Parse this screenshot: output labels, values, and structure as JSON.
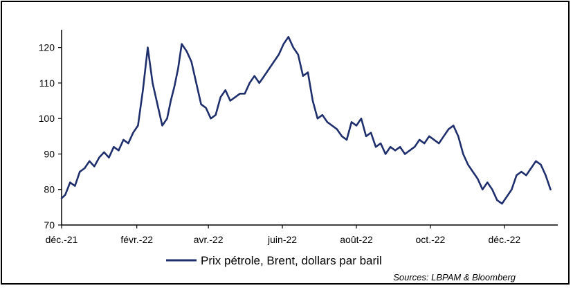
{
  "chart_data": {
    "type": "line",
    "title": "",
    "xlabel": "",
    "ylabel": "",
    "ylim": [
      70,
      125
    ],
    "yticks": [
      70,
      80,
      90,
      100,
      110,
      120
    ],
    "x_tick_labels": [
      "déc.-21",
      "févr.-22",
      "avr.-22",
      "juin-22",
      "août-22",
      "oct.-22",
      "déc.-22"
    ],
    "x_tick_dates": [
      "2021-12-01",
      "2022-02-01",
      "2022-04-01",
      "2022-06-01",
      "2022-08-01",
      "2022-10-01",
      "2022-12-01"
    ],
    "x_range": [
      "2021-12-01",
      "2023-01-14"
    ],
    "line_color": "#1f2f6e",
    "grid": false,
    "legend_position": "bottom-center",
    "series": [
      {
        "name": "Prix pétrole, Brent, dollars par baril",
        "x": [
          "2021-12-01",
          "2021-12-04",
          "2021-12-08",
          "2021-12-12",
          "2021-12-16",
          "2021-12-20",
          "2021-12-24",
          "2021-12-28",
          "2022-01-01",
          "2022-01-05",
          "2022-01-09",
          "2022-01-13",
          "2022-01-17",
          "2022-01-21",
          "2022-01-25",
          "2022-01-29",
          "2022-02-02",
          "2022-02-06",
          "2022-02-10",
          "2022-02-14",
          "2022-02-18",
          "2022-02-22",
          "2022-02-26",
          "2022-03-01",
          "2022-03-04",
          "2022-03-07",
          "2022-03-10",
          "2022-03-14",
          "2022-03-18",
          "2022-03-22",
          "2022-03-26",
          "2022-03-30",
          "2022-04-03",
          "2022-04-07",
          "2022-04-11",
          "2022-04-15",
          "2022-04-19",
          "2022-04-23",
          "2022-04-27",
          "2022-05-01",
          "2022-05-05",
          "2022-05-09",
          "2022-05-13",
          "2022-05-17",
          "2022-05-21",
          "2022-05-25",
          "2022-05-29",
          "2022-06-02",
          "2022-06-06",
          "2022-06-10",
          "2022-06-14",
          "2022-06-18",
          "2022-06-22",
          "2022-06-26",
          "2022-06-30",
          "2022-07-04",
          "2022-07-08",
          "2022-07-12",
          "2022-07-16",
          "2022-07-20",
          "2022-07-24",
          "2022-07-28",
          "2022-08-01",
          "2022-08-05",
          "2022-08-09",
          "2022-08-13",
          "2022-08-17",
          "2022-08-21",
          "2022-08-25",
          "2022-08-29",
          "2022-09-02",
          "2022-09-06",
          "2022-09-10",
          "2022-09-14",
          "2022-09-18",
          "2022-09-22",
          "2022-09-26",
          "2022-09-30",
          "2022-10-04",
          "2022-10-08",
          "2022-10-12",
          "2022-10-16",
          "2022-10-20",
          "2022-10-24",
          "2022-10-28",
          "2022-11-01",
          "2022-11-05",
          "2022-11-09",
          "2022-11-13",
          "2022-11-17",
          "2022-11-21",
          "2022-11-25",
          "2022-11-29",
          "2022-12-03",
          "2022-12-07",
          "2022-12-11",
          "2022-12-15",
          "2022-12-19",
          "2022-12-23",
          "2022-12-27",
          "2022-12-31",
          "2023-01-04",
          "2023-01-08"
        ],
        "values": [
          77.5,
          78.5,
          82,
          81,
          85,
          86,
          88,
          86.5,
          89,
          90.5,
          89,
          92,
          91,
          94,
          93,
          96,
          98,
          108,
          120,
          110,
          104,
          98,
          100,
          105,
          109,
          114,
          121,
          119,
          116,
          110,
          104,
          103,
          100,
          101,
          106,
          108,
          105,
          106,
          107,
          107,
          110,
          112,
          110,
          112,
          114,
          116,
          118,
          121,
          123,
          120,
          118,
          112,
          113,
          105,
          100,
          101,
          99,
          98,
          97,
          95,
          94,
          99,
          98,
          100,
          95,
          96,
          92,
          93,
          90,
          92,
          91,
          92,
          90,
          91,
          92,
          94,
          93,
          95,
          94,
          93,
          95,
          97,
          98,
          95,
          90,
          87,
          85,
          83,
          80,
          82,
          80,
          77,
          76,
          78,
          80,
          84,
          85,
          84,
          86,
          88,
          87,
          84,
          80
        ]
      }
    ]
  },
  "legend": {
    "label": "Prix pétrole, Brent, dollars par baril"
  },
  "source": "Sources: LBPAM & Bloomberg"
}
